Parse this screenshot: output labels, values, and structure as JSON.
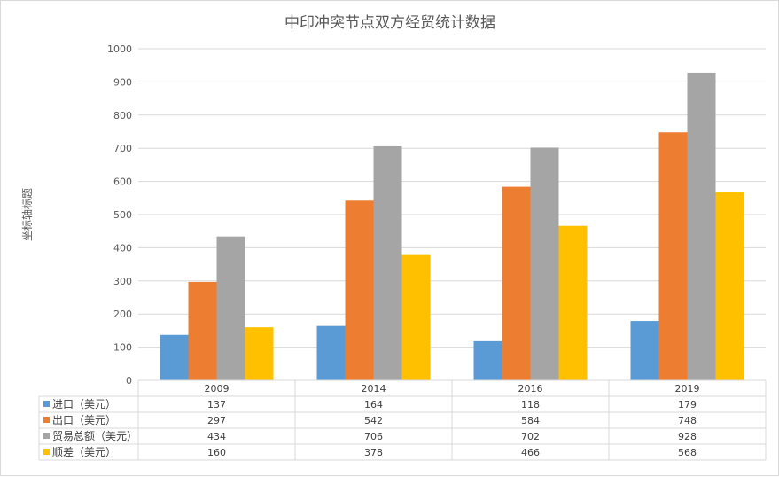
{
  "chart_data": {
    "type": "bar",
    "title": "中印冲突节点双方经贸统计数据",
    "ylabel": "坐标轴标题",
    "xlabel": "",
    "ylim": [
      0,
      1000
    ],
    "yticks": [
      0,
      100,
      200,
      300,
      400,
      500,
      600,
      700,
      800,
      900,
      1000
    ],
    "categories": [
      "2009",
      "2014",
      "2016",
      "2019"
    ],
    "series": [
      {
        "name": "进口（美元）",
        "color": "#5b9bd5",
        "values": [
          137,
          164,
          118,
          179
        ]
      },
      {
        "name": "出口（美元）",
        "color": "#ed7d31",
        "values": [
          297,
          542,
          584,
          748
        ]
      },
      {
        "name": "贸易总额（美元）",
        "color": "#a5a5a5",
        "values": [
          434,
          706,
          702,
          928
        ]
      },
      {
        "name": "顺差（美元）",
        "color": "#ffc000",
        "values": [
          160,
          378,
          466,
          568
        ]
      }
    ],
    "grid": true,
    "legend": "data-table"
  }
}
